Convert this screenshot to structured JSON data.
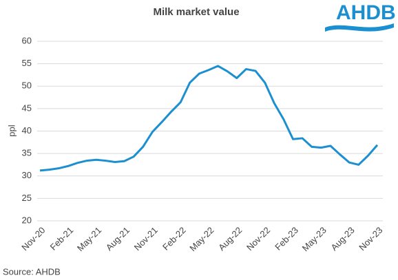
{
  "chart_data": {
    "type": "line",
    "title": "Milk market value",
    "logo": "AHDB",
    "ylabel": "ppl",
    "source": "Source: AHDB",
    "categories": [
      "Nov-20",
      null,
      null,
      "Feb-21",
      null,
      null,
      "May-21",
      null,
      null,
      "Aug-21",
      null,
      null,
      "Nov-21",
      null,
      null,
      "Feb-22",
      null,
      null,
      "May-22",
      null,
      null,
      "Aug-22",
      null,
      null,
      "Nov-22",
      null,
      null,
      "Feb-23",
      null,
      null,
      "May-23",
      null,
      null,
      "Aug-23",
      null,
      null,
      "Nov-23"
    ],
    "series": [
      {
        "name": "Milk market value",
        "color": "#1b8fd0",
        "values": [
          31.2,
          31.4,
          31.7,
          32.2,
          32.9,
          33.4,
          33.6,
          33.4,
          33.1,
          33.3,
          34.3,
          36.5,
          39.8,
          42.0,
          44.3,
          46.4,
          50.8,
          52.8,
          53.6,
          54.5,
          53.3,
          51.8,
          53.8,
          53.4,
          50.8,
          46.2,
          42.6,
          38.2,
          38.4,
          36.5,
          36.3,
          36.7,
          34.8,
          33.0,
          32.5,
          34.5,
          36.9
        ]
      }
    ],
    "ylim": [
      20,
      60
    ],
    "yticks": [
      20,
      25,
      30,
      35,
      40,
      45,
      50,
      55,
      60
    ],
    "grid": true
  }
}
